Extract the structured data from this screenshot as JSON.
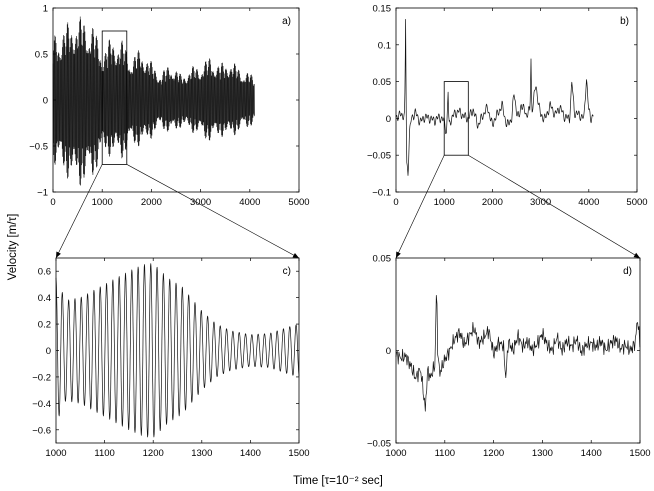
{
  "figure": {
    "ylabel": "Velocity [m/τ]",
    "xlabel": "Time [τ=10⁻² sec]"
  },
  "chart_data": [
    {
      "id": "a",
      "type": "line",
      "panel_label": "a)",
      "xlim": [
        0,
        5000
      ],
      "ylim": [
        -1,
        1
      ],
      "xticks": [
        0,
        1000,
        2000,
        3000,
        4000,
        5000
      ],
      "yticks": [
        -1,
        -0.5,
        0,
        0.5,
        1
      ],
      "xtick_labels": [
        "0",
        "1000",
        "2000",
        "3000",
        "4000",
        "5000"
      ],
      "ytick_labels": [
        "−1",
        "−0.5",
        "0",
        "0.5",
        "1"
      ],
      "x_range": [
        0,
        4100
      ],
      "envelope": {
        "x": [
          0,
          200,
          400,
          600,
          800,
          1000,
          1200,
          1400,
          1600,
          1800,
          2000,
          2200,
          2400,
          2600,
          2800,
          3000,
          3200,
          3400,
          3600,
          3800,
          4000,
          4100
        ],
        "upper": [
          0.72,
          0.8,
          0.9,
          0.92,
          0.85,
          0.55,
          0.7,
          0.66,
          0.48,
          0.58,
          0.42,
          0.3,
          0.42,
          0.28,
          0.36,
          0.4,
          0.48,
          0.4,
          0.45,
          0.35,
          0.3,
          0.25
        ],
        "lower": [
          -0.72,
          -0.8,
          -0.92,
          -0.95,
          -0.88,
          -0.6,
          -0.62,
          -0.65,
          -0.5,
          -0.52,
          -0.42,
          -0.3,
          -0.4,
          -0.3,
          -0.35,
          -0.4,
          -0.47,
          -0.4,
          -0.42,
          -0.35,
          -0.3,
          -0.25
        ]
      },
      "zoom_box": {
        "x": [
          1000,
          1500
        ],
        "y": [
          -0.7,
          0.75
        ]
      }
    },
    {
      "id": "b",
      "type": "line",
      "panel_label": "b)",
      "xlim": [
        0,
        5000
      ],
      "ylim": [
        -0.1,
        0.15
      ],
      "xticks": [
        0,
        1000,
        2000,
        3000,
        4000,
        5000
      ],
      "yticks": [
        -0.1,
        -0.05,
        0,
        0.05,
        0.1,
        0.15
      ],
      "xtick_labels": [
        "0",
        "1000",
        "2000",
        "3000",
        "4000",
        "5000"
      ],
      "ytick_labels": [
        "−0.1",
        "−0.05",
        "0",
        "0.05",
        "0.1",
        "0.15"
      ],
      "x": [
        0,
        100,
        180,
        200,
        220,
        250,
        280,
        320,
        400,
        500,
        600,
        700,
        800,
        900,
        1000,
        1050,
        1080,
        1100,
        1150,
        1200,
        1300,
        1400,
        1500,
        1600,
        1700,
        1800,
        1900,
        2000,
        2050,
        2100,
        2200,
        2300,
        2400,
        2450,
        2500,
        2550,
        2600,
        2700,
        2780,
        2800,
        2820,
        2900,
        3000,
        3100,
        3200,
        3300,
        3400,
        3500,
        3600,
        3650,
        3700,
        3800,
        3900,
        3950,
        4000,
        4050,
        4100
      ],
      "y": [
        0.002,
        0.005,
        0.004,
        0.135,
        -0.06,
        -0.075,
        -0.02,
        0.0,
        0.008,
        -0.005,
        0.002,
        0.0,
        -0.003,
        0.002,
        -0.004,
        -0.02,
        0.037,
        -0.01,
        0.0,
        0.005,
        0.01,
        0.003,
        0.0,
        0.012,
        -0.01,
        0.004,
        0.015,
        -0.01,
        0.0,
        0.005,
        0.018,
        -0.01,
        0.0,
        0.035,
        0.01,
        0.0,
        0.02,
        0.005,
        0.012,
        0.08,
        0.01,
        0.045,
        0.004,
        0.0,
        0.018,
        0.005,
        0.015,
        0.002,
        0.0,
        0.05,
        0.008,
        0.005,
        0.0,
        0.055,
        0.01,
        0.0,
        0.005
      ],
      "zoom_box": {
        "x": [
          1000,
          1500
        ],
        "y": [
          -0.05,
          0.05
        ]
      }
    },
    {
      "id": "c",
      "type": "line",
      "panel_label": "c)",
      "xlim": [
        1000,
        1500
      ],
      "ylim": [
        -0.7,
        0.7
      ],
      "xticks": [
        1000,
        1100,
        1200,
        1300,
        1400,
        1500
      ],
      "yticks": [
        -0.6,
        -0.4,
        -0.2,
        0,
        0.2,
        0.4,
        0.6
      ],
      "xtick_labels": [
        "1000",
        "1100",
        "1200",
        "1300",
        "1400",
        "1500"
      ],
      "ytick_labels": [
        "−0.6",
        "−0.4",
        "−0.2",
        "0",
        "0.2",
        "0.4",
        "0.6"
      ],
      "amplitude_profile": {
        "x": [
          1000,
          1020,
          1050,
          1100,
          1150,
          1180,
          1200,
          1230,
          1260,
          1300,
          1330,
          1360,
          1400,
          1440,
          1480,
          1500
        ],
        "a": [
          0.55,
          0.38,
          0.4,
          0.5,
          0.6,
          0.65,
          0.66,
          0.55,
          0.48,
          0.3,
          0.2,
          0.15,
          0.12,
          0.13,
          0.18,
          0.2
        ]
      },
      "period": 13
    },
    {
      "id": "d",
      "type": "line",
      "panel_label": "d)",
      "xlim": [
        1000,
        1500
      ],
      "ylim": [
        -0.05,
        0.05
      ],
      "xticks": [
        1000,
        1100,
        1200,
        1300,
        1400,
        1500
      ],
      "yticks": [
        -0.05,
        0,
        0.05
      ],
      "xtick_labels": [
        "1000",
        "1100",
        "1200",
        "1300",
        "1400",
        "1500"
      ],
      "ytick_labels": [
        "−0.05",
        "0",
        "0.05"
      ],
      "x": [
        1000,
        1010,
        1020,
        1030,
        1040,
        1050,
        1055,
        1060,
        1065,
        1070,
        1080,
        1083,
        1086,
        1090,
        1100,
        1110,
        1120,
        1130,
        1140,
        1150,
        1160,
        1170,
        1180,
        1190,
        1200,
        1210,
        1220,
        1225,
        1230,
        1240,
        1250,
        1260,
        1270,
        1280,
        1290,
        1300,
        1310,
        1320,
        1330,
        1340,
        1350,
        1360,
        1370,
        1380,
        1390,
        1400,
        1410,
        1420,
        1430,
        1440,
        1450,
        1460,
        1470,
        1480,
        1490,
        1495,
        1500
      ],
      "y": [
        -0.002,
        -0.004,
        -0.003,
        -0.008,
        -0.015,
        -0.01,
        -0.02,
        -0.032,
        -0.01,
        -0.015,
        -0.008,
        0.037,
        -0.005,
        -0.012,
        -0.005,
        0.0,
        0.006,
        0.01,
        0.003,
        0.008,
        0.012,
        0.004,
        0.007,
        0.011,
        -0.002,
        0.004,
        0.003,
        -0.015,
        0.005,
        0.0,
        0.008,
        0.002,
        0.005,
        0.0,
        0.004,
        0.009,
        0.003,
        0.0,
        0.007,
        0.0,
        0.005,
        0.002,
        0.006,
        -0.001,
        0.003,
        0.004,
        0.002,
        0.005,
        0.0,
        0.004,
        0.006,
        0.001,
        0.003,
        0.0,
        0.004,
        0.017,
        0.003
      ]
    }
  ]
}
